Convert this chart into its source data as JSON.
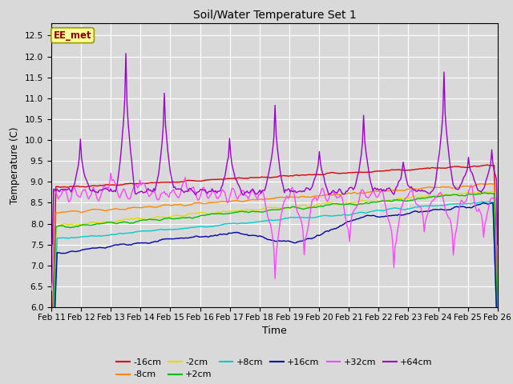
{
  "title": "Soil/Water Temperature Set 1",
  "xlabel": "Time",
  "ylabel": "Temperature (C)",
  "ylim": [
    6.0,
    12.8
  ],
  "yticks": [
    6.0,
    6.5,
    7.0,
    7.5,
    8.0,
    8.5,
    9.0,
    9.5,
    10.0,
    10.5,
    11.0,
    11.5,
    12.0,
    12.5
  ],
  "legend_label": "EE_met",
  "bg_color": "#d9d9d9",
  "series_colors": {
    "-16cm": "#dd0000",
    "-8cm": "#ff8800",
    "-2cm": "#dddd00",
    "+2cm": "#00bb00",
    "+8cm": "#00cccc",
    "+16cm": "#0000aa",
    "+32cm": "#ff44ff",
    "+64cm": "#9900cc"
  },
  "tick_labels": [
    "Feb 11",
    "Feb 12",
    "Feb 13",
    "Feb 14",
    "Feb 15",
    "Feb 16",
    "Feb 17",
    "Feb 18",
    "Feb 19",
    "Feb 20",
    "Feb 21",
    "Feb 22",
    "Feb 23",
    "Feb 24",
    "Feb 25",
    "Feb 26"
  ]
}
